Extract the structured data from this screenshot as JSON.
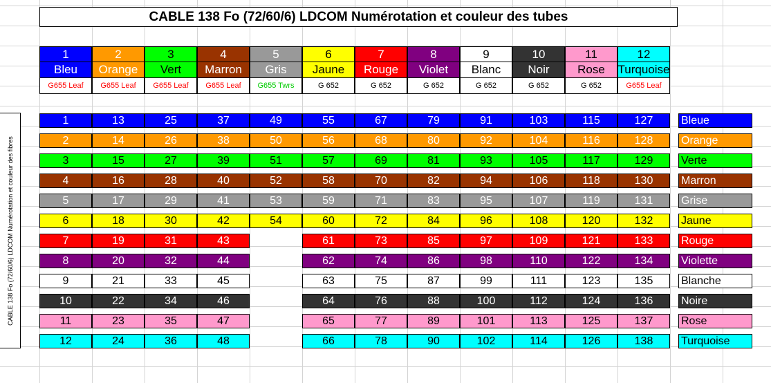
{
  "title": "CABLE 138 Fo (72/60/6) LDCOM Numérotation et couleur des tubes",
  "side_label": "CABLE 138 Fo (72/60/6) LDCOM Numérotation et couleur des fibres",
  "tubes": [
    {
      "num": "1",
      "name": "Bleu",
      "type": "G655 Leaf",
      "bg": "#0000ff",
      "fg": "#ffffff",
      "type_color": "#ff0000"
    },
    {
      "num": "2",
      "name": "Orange",
      "type": "G655 Leaf",
      "bg": "#ff9900",
      "fg": "#ffffff",
      "type_color": "#ff0000"
    },
    {
      "num": "3",
      "name": "Vert",
      "type": "G655 Leaf",
      "bg": "#00ff00",
      "fg": "#000000",
      "type_color": "#ff0000"
    },
    {
      "num": "4",
      "name": "Marron",
      "type": "G655 Leaf",
      "bg": "#993300",
      "fg": "#ffffff",
      "type_color": "#ff0000"
    },
    {
      "num": "5",
      "name": "Gris",
      "type": "G655 Twrs",
      "bg": "#999999",
      "fg": "#ffffff",
      "type_color": "#00cc00"
    },
    {
      "num": "6",
      "name": "Jaune",
      "type": "G 652",
      "bg": "#ffff00",
      "fg": "#000000",
      "type_color": "#000000"
    },
    {
      "num": "7",
      "name": "Rouge",
      "type": "G 652",
      "bg": "#ff0000",
      "fg": "#ffffff",
      "type_color": "#000000"
    },
    {
      "num": "8",
      "name": "Violet",
      "type": "G 652",
      "bg": "#800080",
      "fg": "#ffffff",
      "type_color": "#000000"
    },
    {
      "num": "9",
      "name": "Blanc",
      "type": "G 652",
      "bg": "#ffffff",
      "fg": "#000000",
      "type_color": "#000000"
    },
    {
      "num": "10",
      "name": "Noir",
      "type": "G 652",
      "bg": "#333333",
      "fg": "#ffffff",
      "type_color": "#000000"
    },
    {
      "num": "11",
      "name": "Rose",
      "type": "G 652",
      "bg": "#ff99cc",
      "fg": "#000000",
      "type_color": "#000000"
    },
    {
      "num": "12",
      "name": "Turquoise",
      "type": "G655 Leaf",
      "bg": "#00ffff",
      "fg": "#000000",
      "type_color": "#ff0000"
    }
  ],
  "fiber_rows": [
    {
      "color_name": "Bleue",
      "bg": "#0000ff",
      "fg": "#ffffff",
      "values": [
        "1",
        "13",
        "25",
        "37",
        "49",
        "55",
        "67",
        "79",
        "91",
        "103",
        "115",
        "127"
      ]
    },
    {
      "color_name": "Orange",
      "bg": "#ff9900",
      "fg": "#ffffff",
      "values": [
        "2",
        "14",
        "26",
        "38",
        "50",
        "56",
        "68",
        "80",
        "92",
        "104",
        "116",
        "128"
      ]
    },
    {
      "color_name": "Verte",
      "bg": "#00ff00",
      "fg": "#000000",
      "values": [
        "3",
        "15",
        "27",
        "39",
        "51",
        "57",
        "69",
        "81",
        "93",
        "105",
        "117",
        "129"
      ]
    },
    {
      "color_name": "Marron",
      "bg": "#993300",
      "fg": "#ffffff",
      "values": [
        "4",
        "16",
        "28",
        "40",
        "52",
        "58",
        "70",
        "82",
        "94",
        "106",
        "118",
        "130"
      ]
    },
    {
      "color_name": "Grise",
      "bg": "#999999",
      "fg": "#ffffff",
      "values": [
        "5",
        "17",
        "29",
        "41",
        "53",
        "59",
        "71",
        "83",
        "95",
        "107",
        "119",
        "131"
      ]
    },
    {
      "color_name": "Jaune",
      "bg": "#ffff00",
      "fg": "#000000",
      "values": [
        "6",
        "18",
        "30",
        "42",
        "54",
        "60",
        "72",
        "84",
        "96",
        "108",
        "120",
        "132"
      ]
    },
    {
      "color_name": "Rouge",
      "bg": "#ff0000",
      "fg": "#ffffff",
      "values": [
        "7",
        "19",
        "31",
        "43",
        null,
        "61",
        "73",
        "85",
        "97",
        "109",
        "121",
        "133"
      ]
    },
    {
      "color_name": "Violette",
      "bg": "#800080",
      "fg": "#ffffff",
      "values": [
        "8",
        "20",
        "32",
        "44",
        null,
        "62",
        "74",
        "86",
        "98",
        "110",
        "122",
        "134"
      ]
    },
    {
      "color_name": "Blanche",
      "bg": "#ffffff",
      "fg": "#000000",
      "values": [
        "9",
        "21",
        "33",
        "45",
        null,
        "63",
        "75",
        "87",
        "99",
        "111",
        "123",
        "135"
      ]
    },
    {
      "color_name": "Noire",
      "bg": "#333333",
      "fg": "#ffffff",
      "values": [
        "10",
        "22",
        "34",
        "46",
        null,
        "64",
        "76",
        "88",
        "100",
        "112",
        "124",
        "136"
      ]
    },
    {
      "color_name": "Rose",
      "bg": "#ff99cc",
      "fg": "#000000",
      "values": [
        "11",
        "23",
        "35",
        "47",
        null,
        "65",
        "77",
        "89",
        "101",
        "113",
        "125",
        "137"
      ]
    },
    {
      "color_name": "Turquoise",
      "bg": "#00ffff",
      "fg": "#000000",
      "values": [
        "12",
        "24",
        "36",
        "48",
        null,
        "66",
        "78",
        "90",
        "102",
        "114",
        "126",
        "138"
      ]
    }
  ]
}
